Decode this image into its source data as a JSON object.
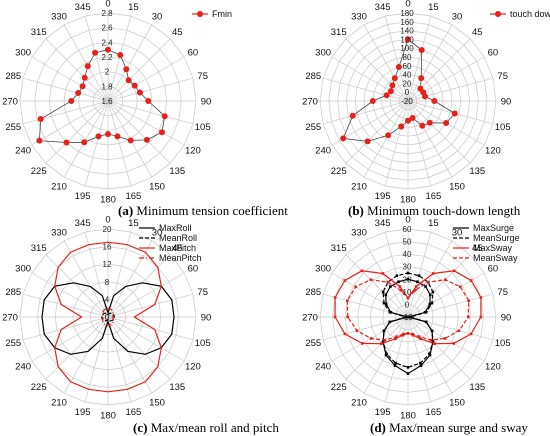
{
  "captions": [
    {
      "letter": "(a)",
      "text": " Minimum tension coefficient"
    },
    {
      "letter": "(b)",
      "text": " Minimum touch-down length"
    },
    {
      "letter": "(c)",
      "text": " Max/mean roll and pitch"
    },
    {
      "letter": "(d)",
      "text": " Max/mean surge and sway"
    }
  ],
  "chart_data": [
    {
      "type": "polar",
      "title": "",
      "angles": [
        0,
        15,
        30,
        45,
        60,
        75,
        90,
        105,
        120,
        135,
        150,
        165,
        180,
        195,
        210,
        225,
        240,
        255,
        270,
        285,
        300,
        315,
        330,
        345
      ],
      "angle_labels": [
        "0",
        "15",
        "30",
        "45",
        "60",
        "75",
        "90",
        "105",
        "120",
        "135",
        "150",
        "165",
        "180",
        "195",
        "210",
        "225",
        "240",
        "255",
        "270",
        "285",
        "300",
        "315",
        "330",
        "345"
      ],
      "rlim": [
        1.6,
        2.8
      ],
      "r_ticks": [
        1.6,
        1.8,
        2.0,
        2.2,
        2.4,
        2.6,
        2.8
      ],
      "r_tick_labels": [
        "1.6",
        "1.8",
        "2",
        "2.2",
        "2.4",
        "2.6",
        "2.8"
      ],
      "legend": "top-right",
      "series": [
        {
          "name": "Fmin",
          "color": "#e8201c",
          "dash": "solid",
          "marker": "circle",
          "line_color": "#444444",
          "values": [
            2.3,
            2.25,
            2.1,
            2.0,
            2.02,
            2.05,
            2.15,
            2.4,
            2.45,
            2.35,
            2.22,
            2.1,
            2.05,
            2.1,
            2.25,
            2.4,
            2.68,
            2.55,
            2.1,
            2.02,
            2.0,
            2.05,
            2.15,
            2.28
          ]
        }
      ]
    },
    {
      "type": "polar",
      "title": "",
      "angles": [
        0,
        15,
        30,
        45,
        60,
        75,
        90,
        105,
        120,
        135,
        150,
        165,
        180,
        195,
        210,
        225,
        240,
        255,
        270,
        285,
        300,
        315,
        330,
        345
      ],
      "angle_labels": [
        "0",
        "15",
        "30",
        "45",
        "60",
        "75",
        "90",
        "105",
        "120",
        "135",
        "150",
        "165",
        "180",
        "195",
        "210",
        "225",
        "240",
        "255",
        "270",
        "285",
        "300",
        "315",
        "330",
        "345"
      ],
      "rlim": [
        -20,
        180
      ],
      "r_ticks": [
        -20,
        0,
        20,
        40,
        60,
        80,
        100,
        120,
        140,
        160,
        180
      ],
      "r_tick_labels": [
        "-20",
        "0",
        "20",
        "40",
        "60",
        "80",
        "100",
        "120",
        "140",
        "160",
        "180"
      ],
      "legend": "top-right",
      "series": [
        {
          "name": "touch down",
          "color": "#e8201c",
          "dash": "solid",
          "marker": "circle",
          "line_color": "#444444",
          "values": [
            120,
            100,
            40,
            20,
            20,
            20,
            40,
            90,
            80,
            50,
            45,
            20,
            25,
            40,
            70,
            110,
            150,
            110,
            60,
            30,
            25,
            30,
            40,
            60
          ]
        }
      ]
    },
    {
      "type": "polar",
      "title": "",
      "angles": [
        0,
        15,
        30,
        45,
        60,
        75,
        90,
        105,
        120,
        135,
        150,
        165,
        180,
        195,
        210,
        225,
        240,
        255,
        270,
        285,
        300,
        315,
        330,
        345
      ],
      "angle_labels": [
        "0",
        "15",
        "30",
        "45",
        "60",
        "75",
        "90",
        "105",
        "120",
        "135",
        "150",
        "165",
        "180",
        "195",
        "210",
        "225",
        "240",
        "255",
        "270",
        "285",
        "300",
        "315",
        "330",
        "345"
      ],
      "rlim": [
        0,
        20
      ],
      "r_ticks": [
        0,
        4,
        8,
        12,
        16,
        20
      ],
      "r_tick_labels": [
        "0",
        "4",
        "8",
        "12",
        "16",
        "20"
      ],
      "legend": "top-right",
      "series": [
        {
          "name": "MaxRoll",
          "color": "#000000",
          "dash": "solid",
          "marker": "none",
          "values": [
            1,
            5,
            8,
            11,
            14,
            15,
            15,
            15,
            14,
            12,
            9,
            5,
            1,
            5,
            9,
            12,
            14,
            15,
            15,
            15,
            14,
            11,
            8,
            5
          ]
        },
        {
          "name": "MeanRoll",
          "color": "#000000",
          "dash": "dash",
          "marker": "none",
          "values": [
            0.5,
            0.8,
            1.0,
            1.2,
            1.3,
            1.4,
            1.4,
            1.4,
            1.3,
            1.2,
            1.0,
            0.8,
            0.5,
            0.8,
            1.0,
            1.2,
            1.3,
            1.4,
            1.4,
            1.4,
            1.3,
            1.2,
            1.0,
            0.8
          ]
        },
        {
          "name": "MaxPitch",
          "color": "#e8201c",
          "dash": "solid",
          "marker": "none",
          "values": [
            17,
            17,
            17,
            16,
            14,
            11,
            6,
            11,
            14,
            16,
            17,
            17,
            17,
            17,
            17,
            16,
            14,
            11,
            6,
            11,
            14,
            16,
            17,
            17
          ]
        },
        {
          "name": "MeanPitch",
          "color": "#e8201c",
          "dash": "dashdot",
          "marker": "none",
          "values": [
            2,
            1.9,
            1.8,
            1.6,
            1.4,
            1.2,
            1.0,
            1.2,
            1.4,
            1.6,
            1.8,
            1.9,
            2,
            1.9,
            1.8,
            1.6,
            1.4,
            1.2,
            1.0,
            1.2,
            1.4,
            1.6,
            1.8,
            1.9
          ]
        }
      ]
    },
    {
      "type": "polar",
      "title": "",
      "angles": [
        0,
        15,
        30,
        45,
        60,
        75,
        90,
        105,
        120,
        135,
        150,
        165,
        180,
        195,
        210,
        225,
        240,
        255,
        270,
        285,
        300,
        315,
        330,
        345
      ],
      "angle_labels": [
        "0",
        "15",
        "30",
        "45",
        "60",
        "75",
        "90",
        "105",
        "120",
        "135",
        "150",
        "165",
        "180",
        "195",
        "210",
        "225",
        "240",
        "255",
        "270",
        "285",
        "300",
        "315",
        "330",
        "345"
      ],
      "rlim": [
        -10,
        60
      ],
      "r_ticks": [
        -10,
        0,
        10,
        20,
        30,
        40,
        50,
        60
      ],
      "r_tick_labels": [
        "-10",
        "0",
        "10",
        "20",
        "30",
        "40",
        "50",
        "60"
      ],
      "legend": "top-right",
      "series": [
        {
          "name": "MaxSurge",
          "color": "#000000",
          "dash": "solid",
          "marker": "square",
          "values": [
            20,
            19,
            18,
            15,
            10,
            4,
            -10,
            5,
            12,
            18,
            25,
            30,
            35,
            30,
            25,
            18,
            12,
            5,
            -10,
            4,
            10,
            15,
            18,
            19
          ]
        },
        {
          "name": "MeanSurge",
          "color": "#000000",
          "dash": "dash",
          "marker": "square",
          "values": [
            25,
            24,
            22,
            18,
            12,
            5,
            -8,
            5,
            12,
            18,
            24,
            28,
            30,
            28,
            24,
            18,
            12,
            5,
            -8,
            5,
            12,
            18,
            22,
            24
          ]
        },
        {
          "name": "MaxSway",
          "color": "#e8201c",
          "dash": "solid",
          "marker": "square",
          "values": [
            5,
            15,
            30,
            42,
            48,
            50,
            48,
            42,
            32,
            20,
            10,
            5,
            3,
            5,
            10,
            20,
            32,
            42,
            48,
            50,
            48,
            42,
            30,
            15
          ]
        },
        {
          "name": "MeanSway",
          "color": "#e8201c",
          "dash": "dash",
          "marker": "square",
          "values": [
            5,
            12,
            22,
            32,
            38,
            40,
            38,
            32,
            24,
            16,
            8,
            4,
            3,
            4,
            8,
            16,
            24,
            32,
            38,
            40,
            38,
            32,
            22,
            12
          ]
        }
      ]
    }
  ]
}
